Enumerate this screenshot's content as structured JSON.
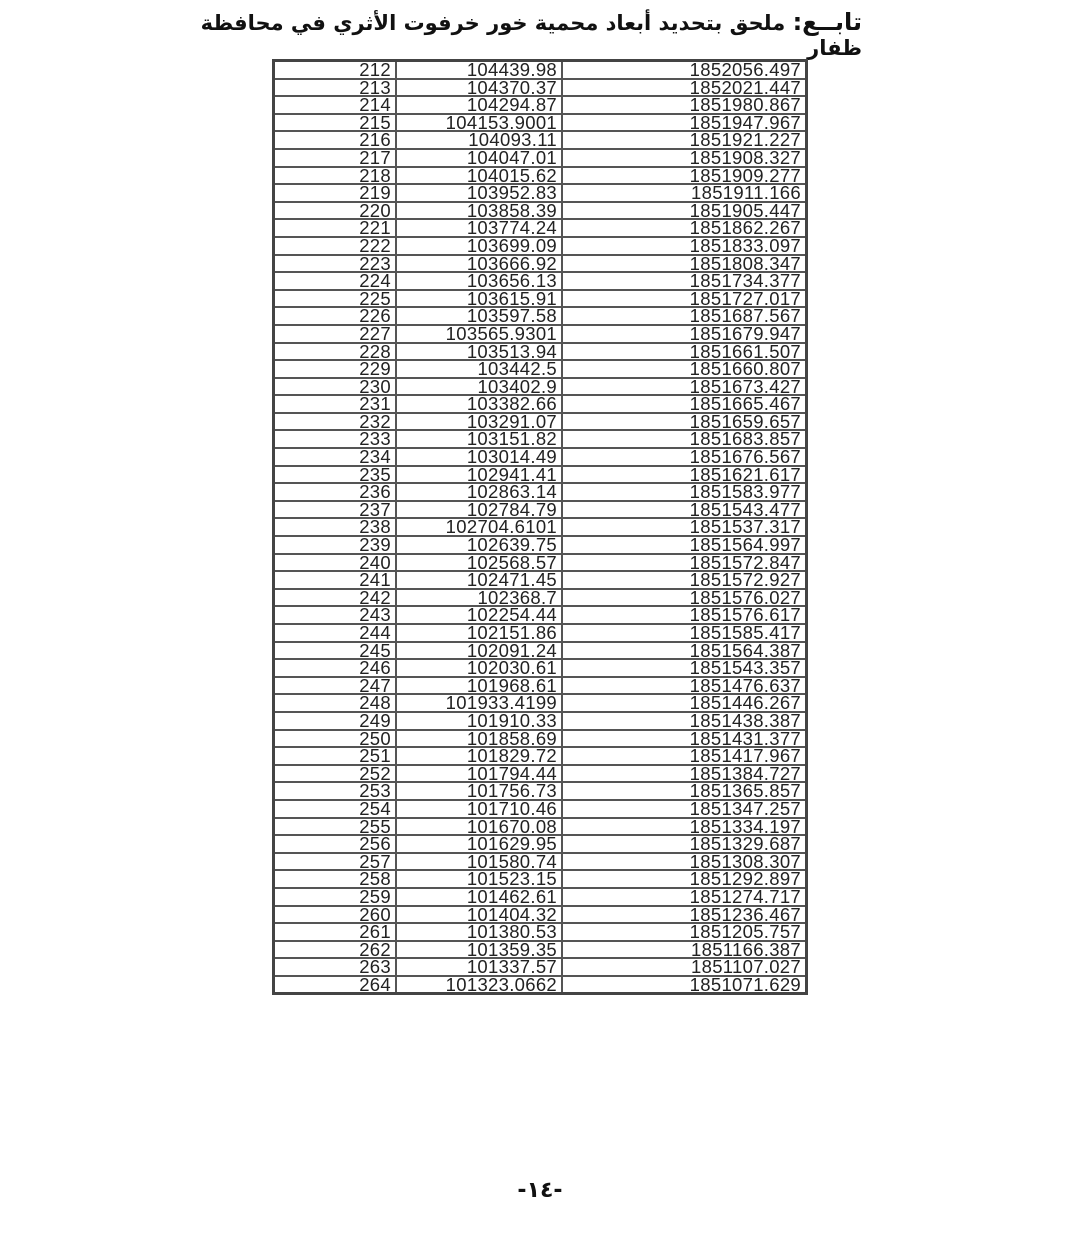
{
  "header": {
    "title_lead": "تابــع:",
    "title": "ملحق بتحديد أبعاد محمية خور خرفوت الأثري في محافظة ظفار"
  },
  "table": {
    "rows": [
      [
        "212",
        "104439.98",
        "1852056.497"
      ],
      [
        "213",
        "104370.37",
        "1852021.447"
      ],
      [
        "214",
        "104294.87",
        "1851980.867"
      ],
      [
        "215",
        "104153.9001",
        "1851947.967"
      ],
      [
        "216",
        "104093.11",
        "1851921.227"
      ],
      [
        "217",
        "104047.01",
        "1851908.327"
      ],
      [
        "218",
        "104015.62",
        "1851909.277"
      ],
      [
        "219",
        "103952.83",
        "1851911.166"
      ],
      [
        "220",
        "103858.39",
        "1851905.447"
      ],
      [
        "221",
        "103774.24",
        "1851862.267"
      ],
      [
        "222",
        "103699.09",
        "1851833.097"
      ],
      [
        "223",
        "103666.92",
        "1851808.347"
      ],
      [
        "224",
        "103656.13",
        "1851734.377"
      ],
      [
        "225",
        "103615.91",
        "1851727.017"
      ],
      [
        "226",
        "103597.58",
        "1851687.567"
      ],
      [
        "227",
        "103565.9301",
        "1851679.947"
      ],
      [
        "228",
        "103513.94",
        "1851661.507"
      ],
      [
        "229",
        "103442.5",
        "1851660.807"
      ],
      [
        "230",
        "103402.9",
        "1851673.427"
      ],
      [
        "231",
        "103382.66",
        "1851665.467"
      ],
      [
        "232",
        "103291.07",
        "1851659.657"
      ],
      [
        "233",
        "103151.82",
        "1851683.857"
      ],
      [
        "234",
        "103014.49",
        "1851676.567"
      ],
      [
        "235",
        "102941.41",
        "1851621.617"
      ],
      [
        "236",
        "102863.14",
        "1851583.977"
      ],
      [
        "237",
        "102784.79",
        "1851543.477"
      ],
      [
        "238",
        "102704.6101",
        "1851537.317"
      ],
      [
        "239",
        "102639.75",
        "1851564.997"
      ],
      [
        "240",
        "102568.57",
        "1851572.847"
      ],
      [
        "241",
        "102471.45",
        "1851572.927"
      ],
      [
        "242",
        "102368.7",
        "1851576.027"
      ],
      [
        "243",
        "102254.44",
        "1851576.617"
      ],
      [
        "244",
        "102151.86",
        "1851585.417"
      ],
      [
        "245",
        "102091.24",
        "1851564.387"
      ],
      [
        "246",
        "102030.61",
        "1851543.357"
      ],
      [
        "247",
        "101968.61",
        "1851476.637"
      ],
      [
        "248",
        "101933.4199",
        "1851446.267"
      ],
      [
        "249",
        "101910.33",
        "1851438.387"
      ],
      [
        "250",
        "101858.69",
        "1851431.377"
      ],
      [
        "251",
        "101829.72",
        "1851417.967"
      ],
      [
        "252",
        "101794.44",
        "1851384.727"
      ],
      [
        "253",
        "101756.73",
        "1851365.857"
      ],
      [
        "254",
        "101710.46",
        "1851347.257"
      ],
      [
        "255",
        "101670.08",
        "1851334.197"
      ],
      [
        "256",
        "101629.95",
        "1851329.687"
      ],
      [
        "257",
        "101580.74",
        "1851308.307"
      ],
      [
        "258",
        "101523.15",
        "1851292.897"
      ],
      [
        "259",
        "101462.61",
        "1851274.717"
      ],
      [
        "260",
        "101404.32",
        "1851236.467"
      ],
      [
        "261",
        "101380.53",
        "1851205.757"
      ],
      [
        "262",
        "101359.35",
        "1851166.387"
      ],
      [
        "263",
        "101337.57",
        "1851107.027"
      ],
      [
        "264",
        "101323.0662",
        "1851071.629"
      ]
    ]
  },
  "footer": {
    "page_number": "-١٤-"
  }
}
